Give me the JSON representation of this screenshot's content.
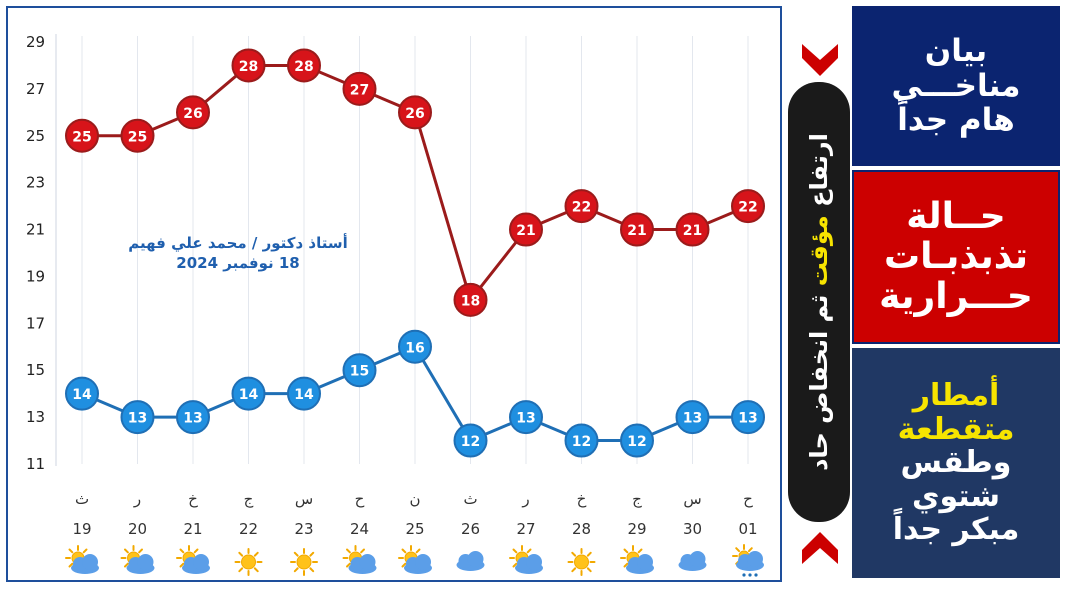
{
  "chart_data": {
    "type": "line",
    "x": [
      "19",
      "20",
      "21",
      "22",
      "23",
      "24",
      "25",
      "26",
      "27",
      "28",
      "29",
      "30",
      "01"
    ],
    "day_letters": [
      "ث",
      "ر",
      "خ",
      "ج",
      "س",
      "ح",
      "ن",
      "ث",
      "ر",
      "خ",
      "ج",
      "س",
      "ح"
    ],
    "weather_icons": [
      "partly-cloudy-icon",
      "partly-cloudy-icon",
      "partly-cloudy-icon",
      "sun-icon",
      "sun-icon",
      "partly-cloudy-icon",
      "partly-cloudy-icon",
      "cloud-icon",
      "partly-cloudy-icon",
      "sun-icon",
      "partly-cloudy-icon",
      "cloud-icon",
      "rain-icon"
    ],
    "series": [
      {
        "values": [
          25,
          25,
          26,
          28,
          28,
          27,
          26,
          18,
          21,
          22,
          21,
          21,
          22
        ],
        "color": "#d7141a",
        "line_color": "#9b1b1b"
      },
      {
        "values": [
          14,
          13,
          13,
          14,
          14,
          15,
          16,
          12,
          13,
          12,
          12,
          13,
          13
        ],
        "color": "#1f8fe0",
        "line_color": "#1f6fb5"
      }
    ],
    "y_ticks": [
      29,
      27,
      25,
      23,
      21,
      19,
      17,
      15,
      13,
      11
    ],
    "ylim": [
      11,
      29
    ],
    "grid": "vertical"
  },
  "author": {
    "line1": "أستاذ دكتور / محمد علي فهيم",
    "line2": "18 نوفمبر 2024"
  },
  "banner": {
    "part1": "ارتفاع",
    "part2": "مؤقت",
    "part3": "ثم انخفاض حاد"
  },
  "panels": {
    "p1": [
      "بيان",
      "مناخـــي",
      "هام جداً"
    ],
    "p2": [
      "حــالة",
      "تذبذبـات",
      "حـــرارية"
    ],
    "p3_yellow": [
      "أمطار",
      "متقطعة"
    ],
    "p3_white": [
      "وطقس شتوي",
      "مبكر جداً"
    ]
  },
  "colors": {
    "high": "#d7141a",
    "low": "#1f8fe0",
    "frame": "#1e4f9c",
    "panel_navy": "#0b2470",
    "panel_red": "#cc0000",
    "highlight_yellow": "#f7e400"
  }
}
